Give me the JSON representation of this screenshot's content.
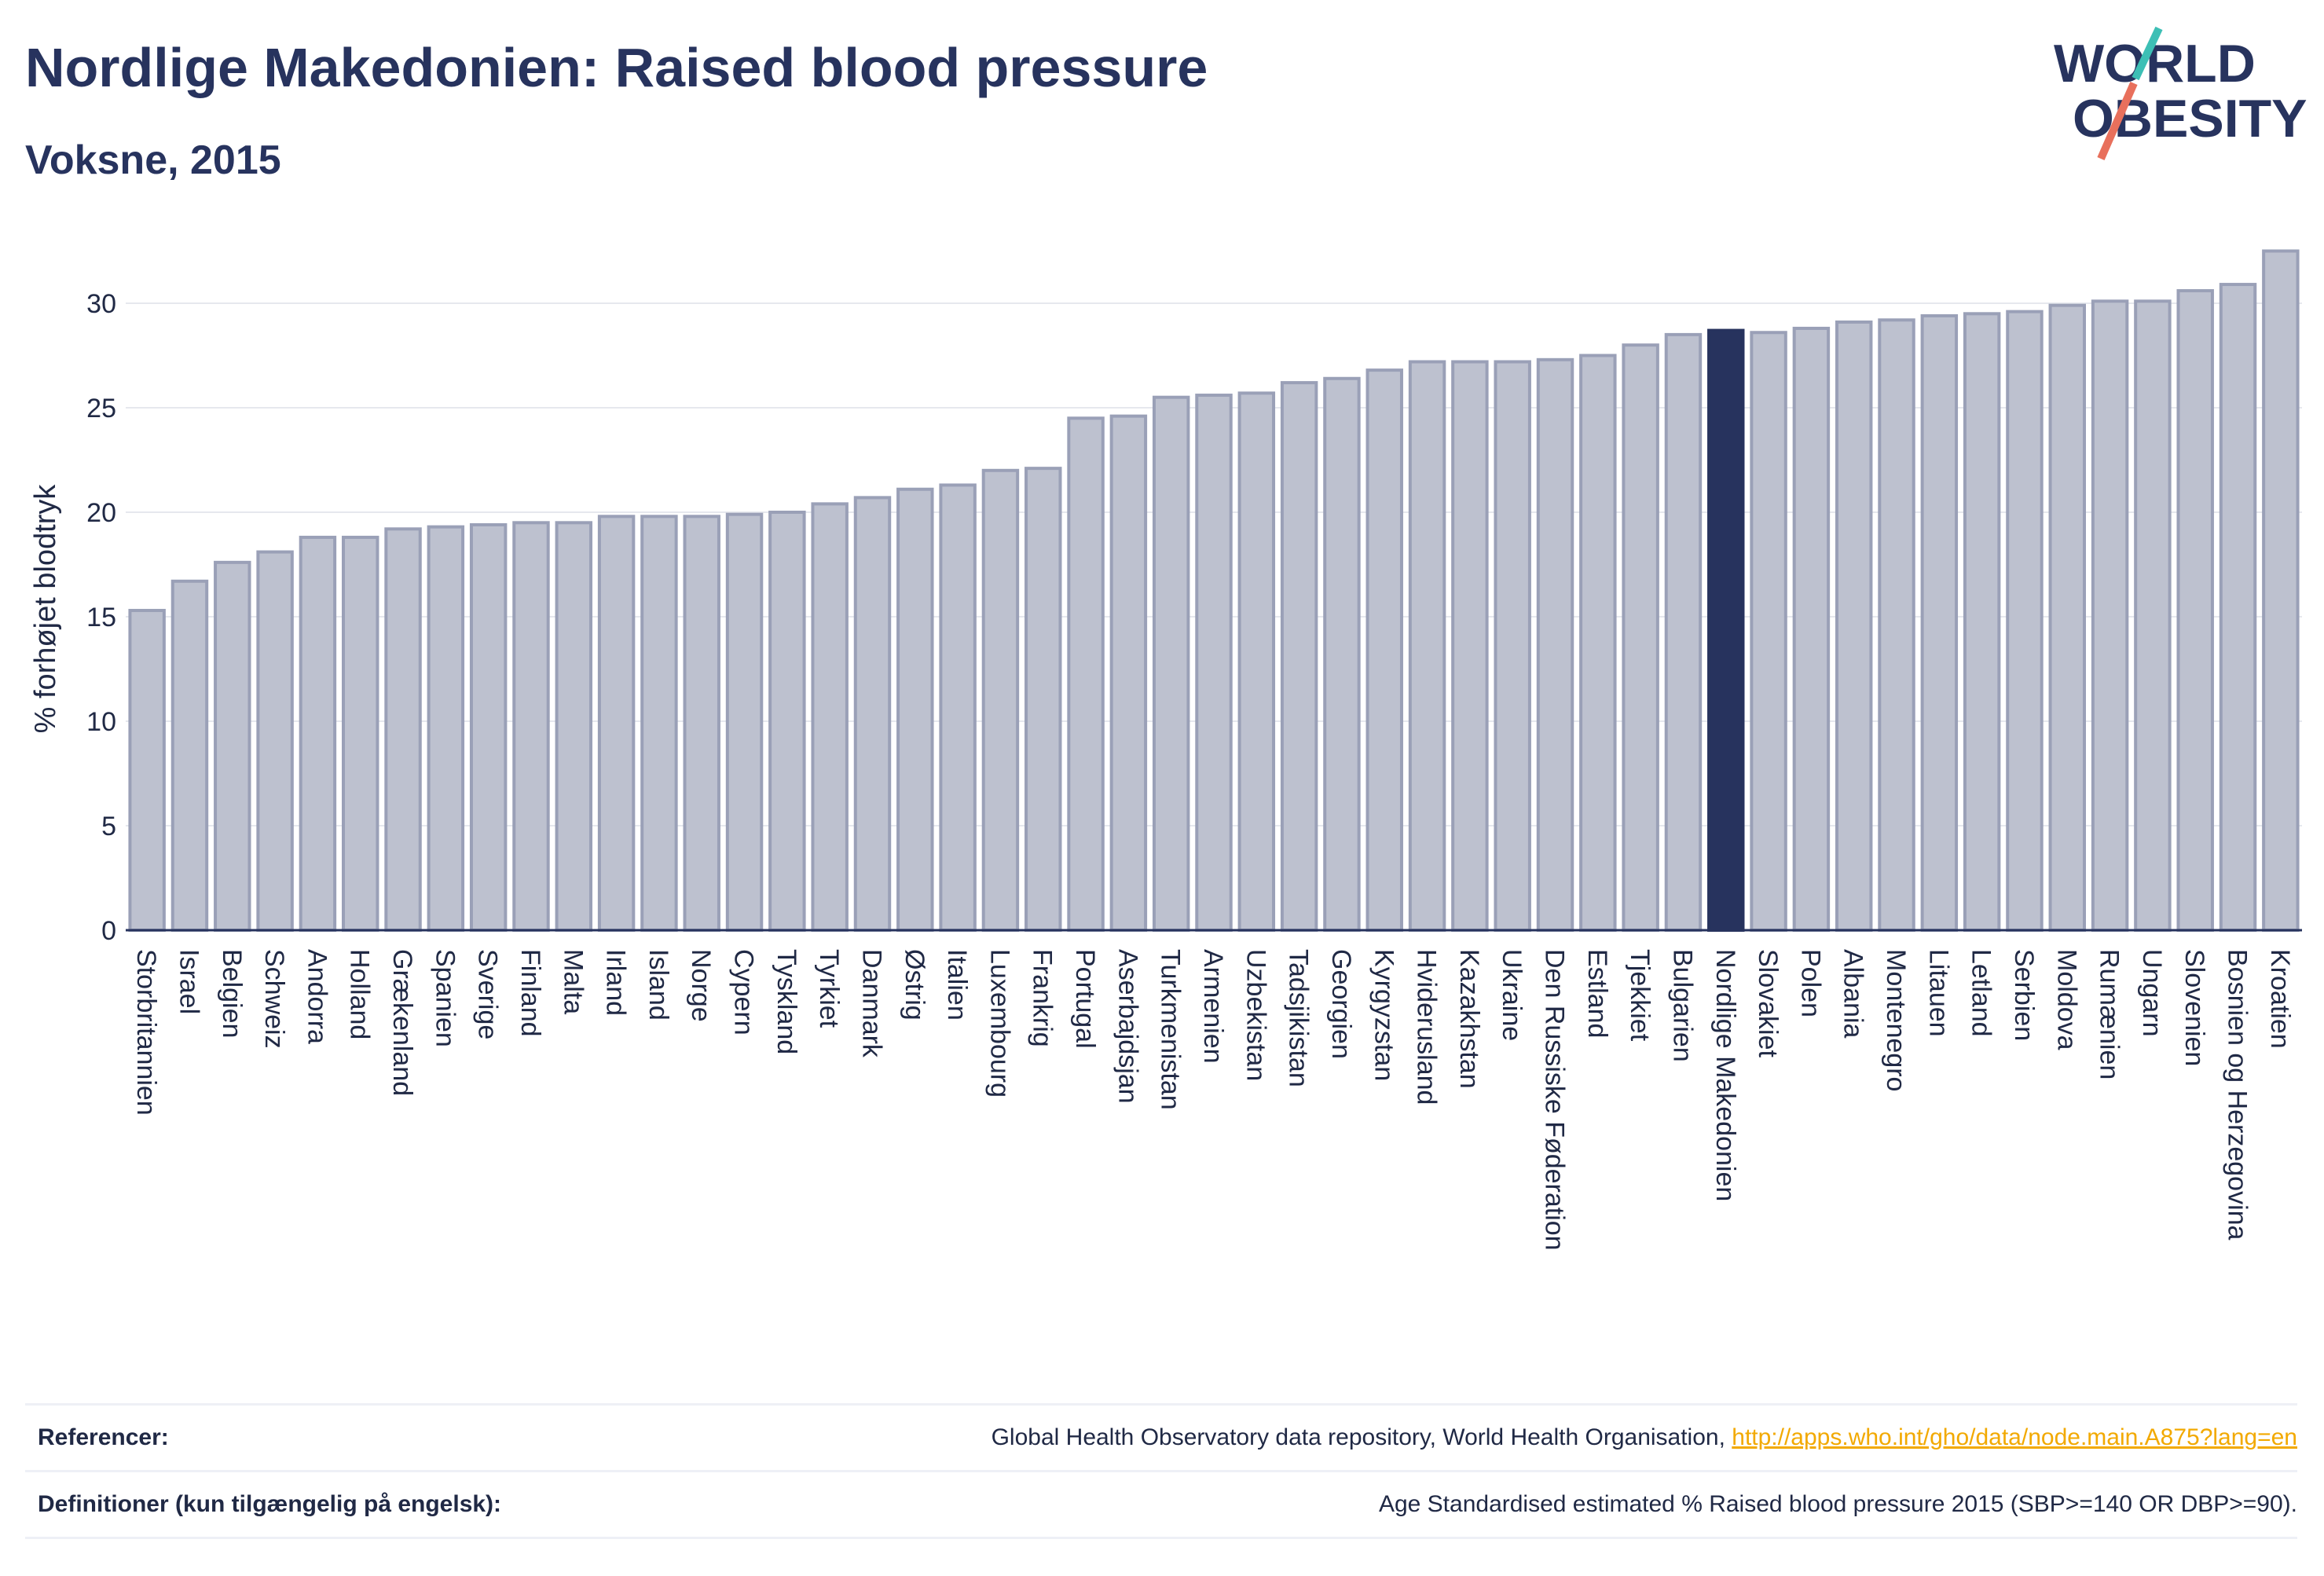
{
  "header": {
    "title": "Nordlige Makedonien: Raised blood pressure",
    "subtitle": "Voksne, 2015"
  },
  "logo": {
    "line1": "WORLD",
    "line2": "OBESITY",
    "slash_colors": [
      "#3dbfb5",
      "#e8705c"
    ],
    "text_color": "#27335e"
  },
  "colors": {
    "bar_default": "#bdc1cf",
    "bar_default_edge": "#9aa0b7",
    "bar_highlight": "#27335e",
    "axis": "#27335e",
    "grid": "#e6e8ee",
    "link": "#f2a900"
  },
  "chart_data": {
    "type": "bar",
    "ylabel": "% forhøjet blodtryk",
    "xlabel": "",
    "ylim": [
      0,
      33.5
    ],
    "yticks": [
      0,
      5,
      10,
      15,
      20,
      25,
      30
    ],
    "grid": true,
    "highlight": "Nordlige Makedonien",
    "categories": [
      "Storbritannien",
      "Israel",
      "Belgien",
      "Schweiz",
      "Andorra",
      "Holland",
      "Grækenland",
      "Spanien",
      "Sverige",
      "Finland",
      "Malta",
      "Irland",
      "Island",
      "Norge",
      "Cypern",
      "Tyskland",
      "Tyrkiet",
      "Danmark",
      "Østrig",
      "Italien",
      "Luxembourg",
      "Frankrig",
      "Portugal",
      "Aserbajdsjan",
      "Turkmenistan",
      "Armenien",
      "Uzbekistan",
      "Tadsjikistan",
      "Georgien",
      "Kyrgyzstan",
      "Hviderusland",
      "Kazakhstan",
      "Ukraine",
      "Den Russiske Føderation",
      "Estland",
      "Tjekkiet",
      "Bulgarien",
      "Nordlige Makedonien",
      "Slovakiet",
      "Polen",
      "Albania",
      "Montenegro",
      "Litauen",
      "Letland",
      "Serbien",
      "Moldova",
      "Rumænien",
      "Ungarn",
      "Slovenien",
      "Bosnien og Herzegovina",
      "Kroatien"
    ],
    "values": [
      15.3,
      16.7,
      17.6,
      18.1,
      18.8,
      18.8,
      19.2,
      19.3,
      19.4,
      19.5,
      19.5,
      19.8,
      19.8,
      19.8,
      19.9,
      20.0,
      20.4,
      20.7,
      21.1,
      21.3,
      22.0,
      22.1,
      24.5,
      24.6,
      25.5,
      25.6,
      25.7,
      26.2,
      26.4,
      26.8,
      27.2,
      27.2,
      27.2,
      27.3,
      27.5,
      28.0,
      28.5,
      28.7,
      28.6,
      28.8,
      29.1,
      29.2,
      29.4,
      29.5,
      29.6,
      29.9,
      30.1,
      30.1,
      30.6,
      30.9,
      32.5
    ]
  },
  "references": [
    {
      "key": "Referencer:",
      "text": "Global Health Observatory data repository, World Health Organisation, ",
      "link": "http://apps.who.int/gho/data/node.main.A875?lang=en"
    },
    {
      "key": "Definitioner (kun tilgængelig på engelsk):",
      "text": "Age Standardised estimated % Raised blood pressure 2015 (SBP>=140 OR DBP>=90).",
      "link": ""
    }
  ]
}
